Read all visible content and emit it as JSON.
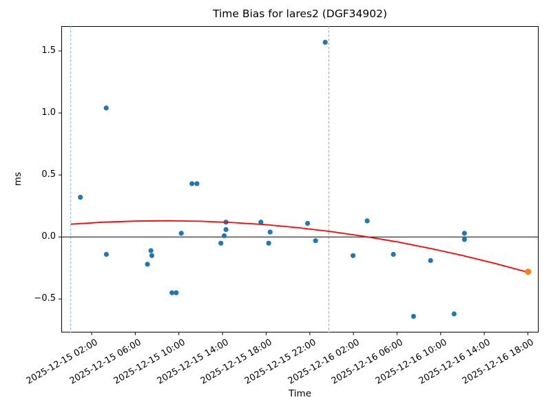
{
  "chart_data": {
    "type": "scatter",
    "title": "Time Bias for lares2 (DGF34902)",
    "xlabel": "Time",
    "ylabel": "ms",
    "x_range": [
      "2025-12-14 23:13",
      "2025-12-16 18:59"
    ],
    "ylim": [
      -0.77,
      1.7
    ],
    "grid": false,
    "legend_position": "none",
    "x_tick_labels": [
      "2025-12-15 02:00",
      "2025-12-15 06:00",
      "2025-12-15 10:00",
      "2025-12-15 14:00",
      "2025-12-15 18:00",
      "2025-12-15 22:00",
      "2025-12-16 02:00",
      "2025-12-16 06:00",
      "2025-12-16 10:00",
      "2025-12-16 14:00",
      "2025-12-16 18:00"
    ],
    "y_ticks": [
      1.5,
      1.0,
      0.5,
      0.0,
      -0.5
    ],
    "zero_line": 0.0,
    "event_vlines": [
      "2025-12-15 00:05",
      "2025-12-15 23:45"
    ],
    "colors": {
      "observation": "#1f77b4",
      "latest_observation": "#ff7f0e",
      "trend": "#ff0000",
      "event_line": "#7fb3d5",
      "axis": "#000000"
    },
    "series": [
      {
        "name": "time-bias-observations",
        "type": "scatter",
        "color": "#1f77b4",
        "points": [
          [
            "2025-12-15 00:58",
            0.32
          ],
          [
            "2025-12-15 03:20",
            1.04
          ],
          [
            "2025-12-15 03:21",
            -0.14
          ],
          [
            "2025-12-15 07:07",
            -0.22
          ],
          [
            "2025-12-15 07:26",
            -0.11
          ],
          [
            "2025-12-15 07:31",
            -0.15
          ],
          [
            "2025-12-15 09:22",
            -0.45
          ],
          [
            "2025-12-15 09:45",
            -0.45
          ],
          [
            "2025-12-15 10:13",
            0.03
          ],
          [
            "2025-12-15 11:12",
            0.43
          ],
          [
            "2025-12-15 11:39",
            0.43
          ],
          [
            "2025-12-15 13:51",
            -0.05
          ],
          [
            "2025-12-15 14:09",
            0.01
          ],
          [
            "2025-12-15 14:19",
            0.12
          ],
          [
            "2025-12-15 14:19",
            0.06
          ],
          [
            "2025-12-15 17:31",
            0.12
          ],
          [
            "2025-12-15 18:14",
            -0.05
          ],
          [
            "2025-12-15 18:22",
            0.04
          ],
          [
            "2025-12-15 21:48",
            0.11
          ],
          [
            "2025-12-15 22:32",
            -0.03
          ],
          [
            "2025-12-15 23:25",
            1.57
          ],
          [
            "2025-12-16 01:58",
            -0.15
          ],
          [
            "2025-12-16 03:16",
            0.13
          ],
          [
            "2025-12-16 05:40",
            -0.14
          ],
          [
            "2025-12-16 07:31",
            -0.64
          ],
          [
            "2025-12-16 09:05",
            -0.19
          ],
          [
            "2025-12-16 11:14",
            -0.62
          ],
          [
            "2025-12-16 12:11",
            0.03
          ],
          [
            "2025-12-16 12:11",
            -0.02
          ]
        ]
      },
      {
        "name": "latest-observation",
        "type": "scatter",
        "color": "#ff7f0e",
        "points": [
          [
            "2025-12-16 18:01",
            -0.28
          ]
        ]
      },
      {
        "name": "polynomial-trend-fit",
        "type": "line",
        "color": "#ff0000",
        "points": [
          [
            "2025-12-15 00:05",
            0.103
          ],
          [
            "2025-12-15 03:00",
            0.119
          ],
          [
            "2025-12-15 06:00",
            0.128
          ],
          [
            "2025-12-15 09:00",
            0.131
          ],
          [
            "2025-12-15 12:00",
            0.127
          ],
          [
            "2025-12-15 15:00",
            0.116
          ],
          [
            "2025-12-15 18:00",
            0.099
          ],
          [
            "2025-12-15 21:00",
            0.074
          ],
          [
            "2025-12-16 00:00",
            0.043
          ],
          [
            "2025-12-16 03:00",
            0.005
          ],
          [
            "2025-12-16 06:00",
            -0.039
          ],
          [
            "2025-12-16 09:00",
            -0.091
          ],
          [
            "2025-12-16 12:00",
            -0.149
          ],
          [
            "2025-12-16 15:00",
            -0.214
          ],
          [
            "2025-12-16 18:01",
            -0.285
          ]
        ]
      }
    ]
  }
}
